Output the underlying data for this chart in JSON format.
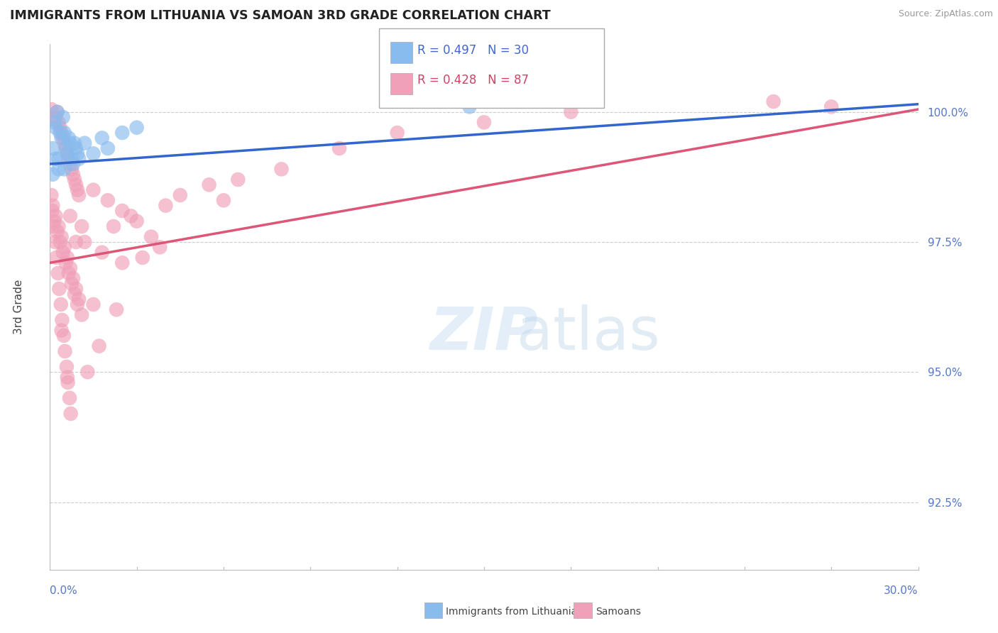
{
  "title": "IMMIGRANTS FROM LITHUANIA VS SAMOAN 3RD GRADE CORRELATION CHART",
  "source": "Source: ZipAtlas.com",
  "ylabel": "3rd Grade",
  "ytick_values": [
    92.5,
    95.0,
    97.5,
    100.0
  ],
  "xmin": 0.0,
  "xmax": 30.0,
  "ymin": 91.2,
  "ymax": 101.3,
  "legend_blue_label": "Immigrants from Lithuania",
  "legend_pink_label": "Samoans",
  "R_blue": 0.497,
  "N_blue": 30,
  "R_pink": 0.428,
  "N_pink": 87,
  "blue_color": "#88bbee",
  "pink_color": "#f0a0b8",
  "blue_line_color": "#3366cc",
  "pink_line_color": "#dd5577",
  "blue_dots": [
    [
      0.1,
      99.3
    ],
    [
      0.2,
      99.7
    ],
    [
      0.3,
      99.1
    ],
    [
      0.4,
      99.5
    ],
    [
      0.5,
      98.9
    ],
    [
      0.6,
      99.2
    ],
    [
      0.7,
      99.4
    ],
    [
      0.8,
      99.0
    ],
    [
      0.9,
      99.3
    ],
    [
      1.0,
      99.1
    ],
    [
      1.2,
      99.4
    ],
    [
      1.5,
      99.2
    ],
    [
      1.8,
      99.5
    ],
    [
      2.0,
      99.3
    ],
    [
      2.5,
      99.6
    ],
    [
      0.15,
      99.8
    ],
    [
      0.25,
      100.0
    ],
    [
      0.35,
      99.6
    ],
    [
      0.45,
      99.9
    ],
    [
      0.55,
      99.3
    ],
    [
      0.65,
      99.5
    ],
    [
      0.75,
      99.1
    ],
    [
      0.85,
      99.4
    ],
    [
      0.95,
      99.2
    ],
    [
      3.0,
      99.7
    ],
    [
      0.1,
      98.8
    ],
    [
      0.2,
      99.1
    ],
    [
      0.3,
      98.9
    ],
    [
      14.5,
      100.1
    ],
    [
      0.5,
      99.6
    ]
  ],
  "pink_dots": [
    [
      0.05,
      100.05
    ],
    [
      0.1,
      99.9
    ],
    [
      0.15,
      99.85
    ],
    [
      0.2,
      99.9
    ],
    [
      0.25,
      100.0
    ],
    [
      0.3,
      99.8
    ],
    [
      0.35,
      99.7
    ],
    [
      0.4,
      99.6
    ],
    [
      0.45,
      99.5
    ],
    [
      0.5,
      99.4
    ],
    [
      0.55,
      99.3
    ],
    [
      0.6,
      99.2
    ],
    [
      0.65,
      99.1
    ],
    [
      0.7,
      99.0
    ],
    [
      0.75,
      98.9
    ],
    [
      0.8,
      98.8
    ],
    [
      0.85,
      98.7
    ],
    [
      0.9,
      98.6
    ],
    [
      0.95,
      98.5
    ],
    [
      1.0,
      98.4
    ],
    [
      0.1,
      98.2
    ],
    [
      0.2,
      98.0
    ],
    [
      0.3,
      97.8
    ],
    [
      0.4,
      97.6
    ],
    [
      0.5,
      97.4
    ],
    [
      0.6,
      97.2
    ],
    [
      0.7,
      97.0
    ],
    [
      0.8,
      96.8
    ],
    [
      0.9,
      96.6
    ],
    [
      1.0,
      96.4
    ],
    [
      0.15,
      97.9
    ],
    [
      0.25,
      97.7
    ],
    [
      0.35,
      97.5
    ],
    [
      0.45,
      97.3
    ],
    [
      0.55,
      97.1
    ],
    [
      0.65,
      96.9
    ],
    [
      0.75,
      96.7
    ],
    [
      0.85,
      96.5
    ],
    [
      0.95,
      96.3
    ],
    [
      1.1,
      96.1
    ],
    [
      1.5,
      98.5
    ],
    [
      2.0,
      98.3
    ],
    [
      2.5,
      98.1
    ],
    [
      3.0,
      97.9
    ],
    [
      4.0,
      98.2
    ],
    [
      1.2,
      97.5
    ],
    [
      1.8,
      97.3
    ],
    [
      2.2,
      97.8
    ],
    [
      2.8,
      98.0
    ],
    [
      3.5,
      97.6
    ],
    [
      0.05,
      98.4
    ],
    [
      0.08,
      98.1
    ],
    [
      0.12,
      97.8
    ],
    [
      0.18,
      97.5
    ],
    [
      0.22,
      97.2
    ],
    [
      0.28,
      96.9
    ],
    [
      0.32,
      96.6
    ],
    [
      0.38,
      96.3
    ],
    [
      0.42,
      96.0
    ],
    [
      0.48,
      95.7
    ],
    [
      0.52,
      95.4
    ],
    [
      0.58,
      95.1
    ],
    [
      0.62,
      94.8
    ],
    [
      0.68,
      94.5
    ],
    [
      0.72,
      94.2
    ],
    [
      1.3,
      95.0
    ],
    [
      1.7,
      95.5
    ],
    [
      2.3,
      96.2
    ],
    [
      3.2,
      97.2
    ],
    [
      4.5,
      98.4
    ],
    [
      5.5,
      98.6
    ],
    [
      6.5,
      98.7
    ],
    [
      8.0,
      98.9
    ],
    [
      10.0,
      99.3
    ],
    [
      12.0,
      99.6
    ],
    [
      15.0,
      99.8
    ],
    [
      18.0,
      100.0
    ],
    [
      25.0,
      100.2
    ],
    [
      27.0,
      100.1
    ],
    [
      0.7,
      98.0
    ],
    [
      0.9,
      97.5
    ],
    [
      1.1,
      97.8
    ],
    [
      3.8,
      97.4
    ],
    [
      6.0,
      98.3
    ],
    [
      0.4,
      95.8
    ],
    [
      0.6,
      94.9
    ],
    [
      1.5,
      96.3
    ],
    [
      2.5,
      97.1
    ]
  ]
}
